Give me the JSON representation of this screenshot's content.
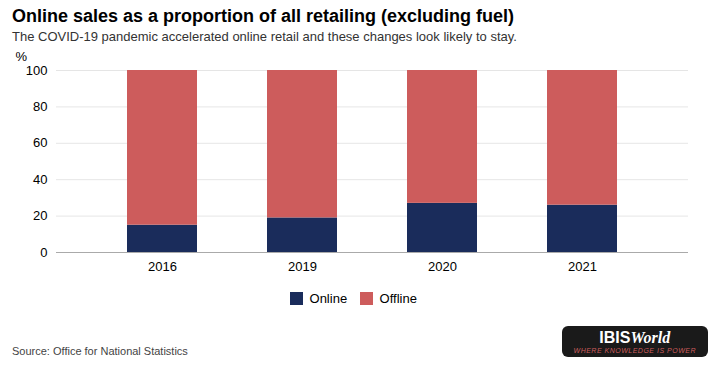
{
  "chart_data": {
    "type": "bar",
    "stacked": true,
    "title": "Online sales as a proportion of all retailing (excluding fuel)",
    "subtitle": "The COVID-19 pandemic accelerated online retail and these changes look likely to stay.",
    "source": "Source: Office for National Statistics",
    "annotations": [
      "IBIS",
      "World",
      "WHERE KNOWLEDGE IS POWER"
    ],
    "ylabel": "%",
    "categories": [
      "2016",
      "2019",
      "2020",
      "2021"
    ],
    "series": [
      {
        "name": "Online",
        "color": "#1a2c5b",
        "values": [
          15,
          19,
          27,
          26
        ]
      },
      {
        "name": "Offline",
        "color": "#cd5c5c",
        "values": [
          85,
          81,
          73,
          74
        ]
      }
    ],
    "ylim": [
      0,
      100
    ],
    "yticks": [
      0,
      20,
      40,
      60,
      80,
      100
    ],
    "grid": true,
    "legend": "bottom"
  }
}
